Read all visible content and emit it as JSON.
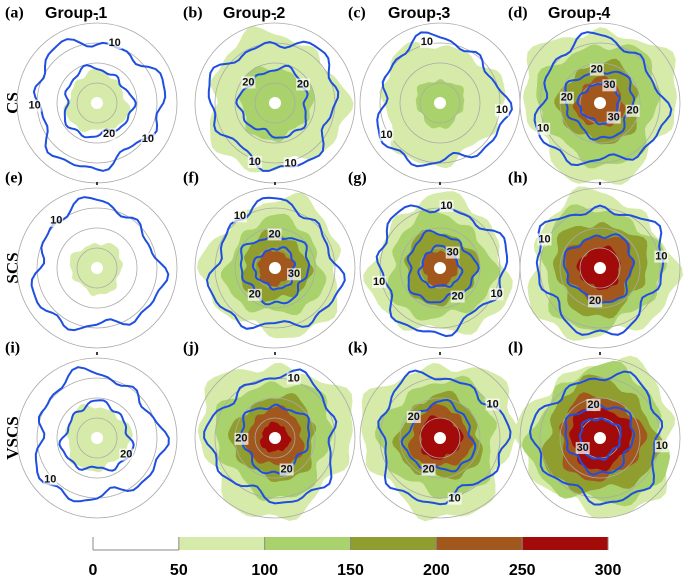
{
  "chart_data": {
    "type": "contourf",
    "columns": [
      "Group-1",
      "Group-2",
      "Group-3",
      "Group-4"
    ],
    "rows": [
      "CS",
      "SCS",
      "VSCS"
    ],
    "panels": [
      {
        "label": "(a)",
        "contour_labels": [
          20,
          10,
          10,
          10
        ]
      },
      {
        "label": "(b)",
        "contour_labels": [
          10,
          20,
          20,
          10
        ]
      },
      {
        "label": "(c)",
        "contour_labels": [
          10,
          10,
          10
        ]
      },
      {
        "label": "(d)",
        "contour_labels": [
          20,
          30,
          30,
          10,
          20,
          20
        ]
      },
      {
        "label": "(e)",
        "contour_labels": [
          10
        ]
      },
      {
        "label": "(f)",
        "contour_labels": [
          20,
          30,
          20,
          10
        ]
      },
      {
        "label": "(g)",
        "contour_labels": [
          30,
          20,
          10,
          10,
          10
        ]
      },
      {
        "label": "(h)",
        "contour_labels": [
          10,
          20,
          10
        ]
      },
      {
        "label": "(i)",
        "contour_labels": [
          20,
          10
        ]
      },
      {
        "label": "(j)",
        "contour_labels": [
          20,
          20,
          10
        ]
      },
      {
        "label": "(k)",
        "contour_labels": [
          20,
          20,
          10,
          10
        ]
      },
      {
        "label": "(l)",
        "contour_labels": [
          30,
          20,
          10
        ]
      }
    ],
    "colorbar": {
      "clim": [
        0,
        300
      ],
      "ticks": [
        0,
        50,
        100,
        150,
        200,
        250,
        300
      ],
      "colors": [
        "#d6eba9",
        "#a9d26d",
        "#8f9e2f",
        "#a2571c",
        "#a30a0a"
      ]
    },
    "contour_color": "#1f4fe0"
  }
}
